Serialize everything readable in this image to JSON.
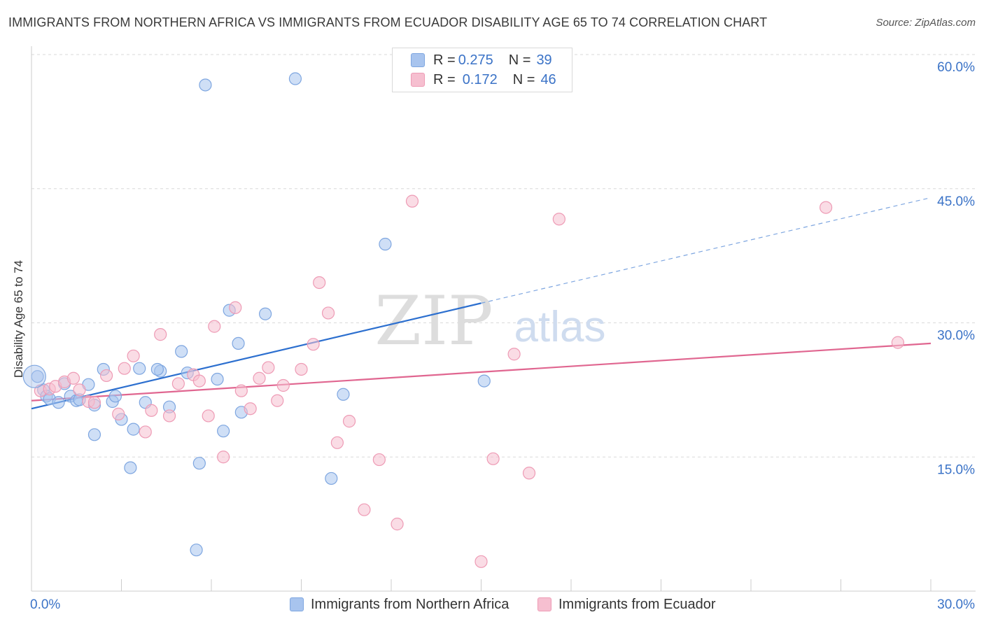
{
  "title": "IMMIGRANTS FROM NORTHERN AFRICA VS IMMIGRANTS FROM ECUADOR DISABILITY AGE 65 TO 74 CORRELATION CHART",
  "source": "Source: ZipAtlas.com",
  "watermark": {
    "zip": "ZIP",
    "atlas": "atlas"
  },
  "legend": {
    "rows": [
      {
        "r_key": "R =",
        "r_value": "0.275",
        "n_key": "N =",
        "n_value": "39",
        "color": "#a8c4ee",
        "stroke": "#7ea6e0"
      },
      {
        "r_key": "R =",
        "r_value": "0.172",
        "n_key": "N =",
        "n_value": "46",
        "color": "#f6bfd0",
        "stroke": "#ee9bb5"
      }
    ]
  },
  "chart_data": {
    "type": "scatter",
    "xlabel": "",
    "ylabel": "Disability Age 65 to 74",
    "xlim": [
      0,
      30
    ],
    "ylim": [
      0,
      60
    ],
    "y_ticks": [
      15,
      30,
      45,
      60
    ],
    "y_tick_labels": [
      "15.0%",
      "30.0%",
      "45.0%",
      "60.0%"
    ],
    "x_tick_labels": [
      "0.0%",
      "30.0%"
    ],
    "grid": true,
    "legend_position": "bottom",
    "series": [
      {
        "name": "Immigrants from Northern Africa",
        "color": "#7ea6e0",
        "fill": "#a8c4ee",
        "line_color": "#2c6fcf",
        "trend": {
          "x0": 0,
          "y0": 20.4,
          "x1": 15,
          "y1": 32.2,
          "dashed_to_x": 30,
          "dashed_to_y": 44.0
        },
        "points": [
          [
            0.2,
            24.0
          ],
          [
            0.4,
            22.5
          ],
          [
            0.5,
            21.8
          ],
          [
            0.6,
            21.5
          ],
          [
            0.9,
            21.1
          ],
          [
            1.1,
            23.2
          ],
          [
            1.3,
            21.8
          ],
          [
            1.5,
            21.3
          ],
          [
            1.6,
            21.4
          ],
          [
            1.9,
            23.1
          ],
          [
            2.1,
            20.8
          ],
          [
            2.4,
            24.8
          ],
          [
            2.7,
            21.2
          ],
          [
            2.8,
            21.8
          ],
          [
            3.0,
            19.2
          ],
          [
            3.4,
            18.1
          ],
          [
            3.3,
            13.8
          ],
          [
            3.6,
            24.9
          ],
          [
            3.8,
            21.1
          ],
          [
            4.3,
            24.6
          ],
          [
            4.2,
            24.8
          ],
          [
            4.6,
            20.6
          ],
          [
            5.0,
            26.8
          ],
          [
            5.2,
            24.4
          ],
          [
            5.6,
            14.3
          ],
          [
            5.8,
            56.6
          ],
          [
            6.2,
            23.7
          ],
          [
            6.4,
            17.9
          ],
          [
            6.6,
            31.4
          ],
          [
            6.9,
            27.7
          ],
          [
            7.0,
            20.0
          ],
          [
            7.8,
            31.0
          ],
          [
            8.8,
            57.3
          ],
          [
            10.0,
            12.6
          ],
          [
            10.4,
            22.0
          ],
          [
            11.8,
            38.8
          ],
          [
            15.1,
            23.5
          ],
          [
            2.1,
            17.5
          ],
          [
            5.5,
            4.6
          ]
        ]
      },
      {
        "name": "Immigrants from Ecuador",
        "color": "#ee9bb5",
        "fill": "#f6bfd0",
        "line_color": "#e06690",
        "trend": {
          "x0": 0,
          "y0": 21.3,
          "x1": 30,
          "y1": 27.7
        },
        "points": [
          [
            0.3,
            22.4
          ],
          [
            0.6,
            22.6
          ],
          [
            0.8,
            22.9
          ],
          [
            1.1,
            23.4
          ],
          [
            1.4,
            23.8
          ],
          [
            1.6,
            22.5
          ],
          [
            1.9,
            21.2
          ],
          [
            2.1,
            21.1
          ],
          [
            2.5,
            24.1
          ],
          [
            2.9,
            19.8
          ],
          [
            3.1,
            24.9
          ],
          [
            3.4,
            26.3
          ],
          [
            3.8,
            17.8
          ],
          [
            4.0,
            20.2
          ],
          [
            4.3,
            28.7
          ],
          [
            4.6,
            19.6
          ],
          [
            4.9,
            23.2
          ],
          [
            5.4,
            24.2
          ],
          [
            5.6,
            23.5
          ],
          [
            5.9,
            19.6
          ],
          [
            6.1,
            29.6
          ],
          [
            6.4,
            15.0
          ],
          [
            6.8,
            31.7
          ],
          [
            7.0,
            22.4
          ],
          [
            7.3,
            20.4
          ],
          [
            7.6,
            23.8
          ],
          [
            7.9,
            25.0
          ],
          [
            8.2,
            21.3
          ],
          [
            8.4,
            23.0
          ],
          [
            9.0,
            24.8
          ],
          [
            9.4,
            27.6
          ],
          [
            9.6,
            34.5
          ],
          [
            9.9,
            31.1
          ],
          [
            10.2,
            16.6
          ],
          [
            10.6,
            19.0
          ],
          [
            11.1,
            9.1
          ],
          [
            11.6,
            14.7
          ],
          [
            12.2,
            7.5
          ],
          [
            12.7,
            43.6
          ],
          [
            15.0,
            3.3
          ],
          [
            15.4,
            14.8
          ],
          [
            16.1,
            26.5
          ],
          [
            16.6,
            13.2
          ],
          [
            17.6,
            41.6
          ],
          [
            26.5,
            42.9
          ],
          [
            28.9,
            27.8
          ]
        ]
      }
    ]
  }
}
